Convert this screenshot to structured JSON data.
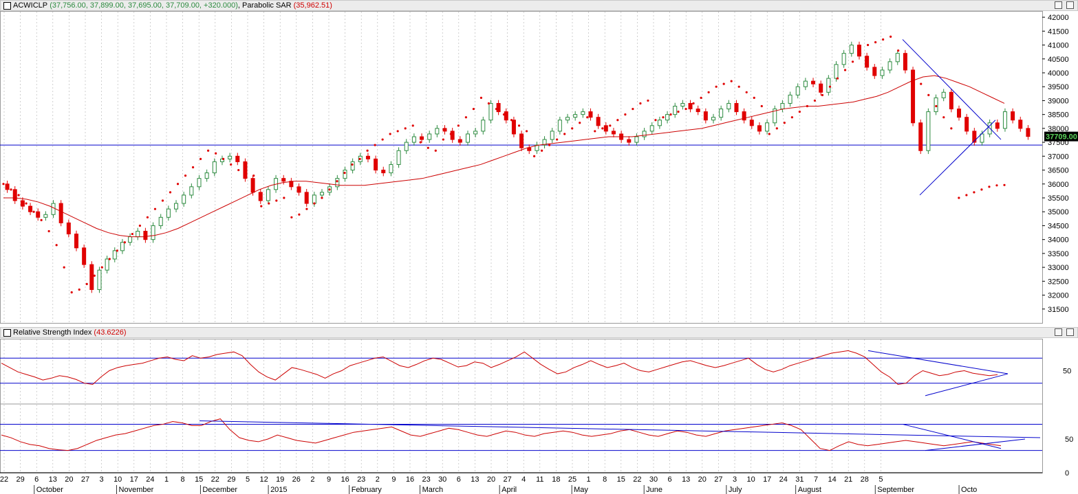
{
  "panels": {
    "price": {
      "symbol": "ACWICLP",
      "ohlc_text": "(37,756.00, 37,899.00, 37,695.00, 37,709.00, +320.000)",
      "indicator": "Parabolic SAR",
      "indicator_value": "(35,962.51)",
      "last_price_badge": "37709.00"
    },
    "rsi": {
      "title": "Relative Strength Index",
      "value": "(43.6226)"
    }
  },
  "colors": {
    "up_candle": "#2b8a3e",
    "down_candle": "#e00000",
    "moving_average": "#cc0000",
    "sar": "#e00000",
    "trendline": "#0000cc",
    "rsi_line": "#cc0000",
    "grid": "#b0b0b0"
  },
  "chart_data": [
    {
      "type": "candlestick",
      "ylim": [
        31000,
        42200
      ],
      "y_ticks": [
        "42000",
        "41500",
        "41000",
        "40500",
        "40000",
        "39500",
        "39000",
        "38500",
        "38000",
        "37500",
        "37000",
        "36500",
        "36000",
        "35500",
        "35000",
        "34500",
        "34000",
        "33500",
        "33000",
        "32500",
        "32000",
        "31500"
      ],
      "horizontal_line": 37400,
      "last_close": 37709,
      "close_series": [
        35800,
        35400,
        35200,
        35000,
        34800,
        34900,
        35300,
        34600,
        34200,
        33700,
        33100,
        32200,
        32900,
        33300,
        33600,
        33900,
        34100,
        34300,
        34000,
        34500,
        34800,
        35100,
        35300,
        35600,
        35900,
        36200,
        36400,
        36800,
        36900,
        37000,
        36800,
        36200,
        35700,
        35400,
        35800,
        36200,
        36100,
        35900,
        35700,
        35300,
        35600,
        35700,
        35900,
        36200,
        36500,
        36800,
        37000,
        36900,
        36500,
        36400,
        36700,
        37200,
        37500,
        37700,
        37600,
        37800,
        38000,
        37900,
        37600,
        37500,
        37800,
        37900,
        38300,
        38900,
        38600,
        38300,
        37800,
        37300,
        37200,
        37400,
        37600,
        37900,
        38300,
        38400,
        38500,
        38600,
        38400,
        38100,
        37900,
        37800,
        37600,
        37500,
        37700,
        37900,
        38100,
        38300,
        38500,
        38800,
        38900,
        38700,
        38600,
        38300,
        38400,
        38700,
        38900,
        38600,
        38300,
        38100,
        37900,
        38200,
        38700,
        38900,
        39200,
        39500,
        39700,
        39600,
        39300,
        39800,
        40300,
        40700,
        41000,
        40600,
        40200,
        39900,
        40100,
        40400,
        40700,
        40100,
        38200,
        37200,
        38600,
        39100,
        39300,
        38700,
        38400,
        37900,
        37500,
        37800,
        38200,
        38000,
        38600,
        38300,
        38000,
        37709
      ],
      "sar_series": [
        36000,
        35800,
        35600,
        35300,
        35000,
        34700,
        34300,
        33800,
        33000,
        32100,
        32200,
        32400,
        32700,
        33000,
        33300,
        33600,
        33900,
        34200,
        34500,
        34800,
        35100,
        35400,
        35700,
        36000,
        36300,
        36600,
        36900,
        37200,
        37100,
        36900,
        36700,
        36500,
        36400,
        36300,
        35200,
        35300,
        35400,
        35500,
        34800,
        34900,
        35100,
        35300,
        35500,
        35800,
        36100,
        36400,
        36700,
        36900,
        37200,
        37400,
        37600,
        37800,
        37900,
        38000,
        38100,
        37500,
        37300,
        37200,
        37600,
        37800,
        38100,
        38400,
        38700,
        39100,
        38900,
        38700,
        38500,
        38300,
        38100,
        37900,
        37000,
        37200,
        37400,
        37600,
        37800,
        38000,
        38200,
        38400,
        37900,
        38000,
        38100,
        38300,
        38500,
        38700,
        38900,
        39000,
        38300,
        38400,
        38500,
        38600,
        38700,
        38900,
        39100,
        39300,
        39500,
        39600,
        39700,
        39500,
        39300,
        39100,
        38800,
        37800,
        38000,
        38200,
        38400,
        38600,
        38800,
        39000,
        39200,
        39500,
        39800,
        40100,
        40400,
        40700,
        41000,
        41100,
        41200,
        41300,
        40800,
        40400,
        40000,
        39600,
        39200,
        38800,
        38400,
        38000,
        35500,
        35600,
        35700,
        35800,
        35900,
        35950,
        35962
      ],
      "ma_series": [
        35500,
        35500,
        35450,
        35350,
        35200,
        35000,
        34800,
        34600,
        34400,
        34250,
        34150,
        34100,
        34100,
        34150,
        34250,
        34400,
        34600,
        34800,
        35000,
        35200,
        35400,
        35600,
        35800,
        35950,
        36050,
        36100,
        36100,
        36050,
        36000,
        35950,
        35950,
        35950,
        36000,
        36050,
        36100,
        36150,
        36200,
        36300,
        36400,
        36500,
        36600,
        36700,
        36850,
        37000,
        37150,
        37300,
        37400,
        37450,
        37500,
        37550,
        37600,
        37650,
        37700,
        37700,
        37700,
        37750,
        37800,
        37850,
        37900,
        37950,
        38000,
        38100,
        38200,
        38300,
        38400,
        38500,
        38600,
        38700,
        38750,
        38800,
        38800,
        38850,
        38900,
        38950,
        39050,
        39150,
        39300,
        39500,
        39700,
        39850,
        39900,
        39800,
        39650,
        39500,
        39300,
        39100,
        38900
      ]
    },
    {
      "type": "line",
      "title": "Relative Strength Index",
      "ylim": [
        0,
        100
      ],
      "y_ticks": [
        "50"
      ],
      "reference_lines": [
        70,
        30
      ],
      "last_value": 43.6226,
      "values": [
        62,
        55,
        48,
        44,
        40,
        35,
        38,
        42,
        40,
        36,
        30,
        28,
        40,
        50,
        55,
        58,
        60,
        62,
        66,
        70,
        72,
        68,
        66,
        74,
        70,
        72,
        76,
        78,
        80,
        74,
        60,
        48,
        40,
        35,
        45,
        55,
        52,
        48,
        44,
        38,
        45,
        50,
        58,
        62,
        66,
        70,
        72,
        65,
        58,
        55,
        60,
        66,
        70,
        68,
        62,
        56,
        58,
        64,
        62,
        55,
        60,
        66,
        72,
        80,
        70,
        60,
        52,
        45,
        48,
        55,
        60,
        66,
        60,
        55,
        58,
        62,
        55,
        50,
        48,
        52,
        56,
        60,
        64,
        66,
        62,
        58,
        55,
        58,
        62,
        66,
        70,
        60,
        52,
        48,
        52,
        58,
        62,
        66,
        70,
        74,
        78,
        80,
        82,
        78,
        72,
        60,
        48,
        40,
        28,
        30,
        42,
        50,
        46,
        42,
        44,
        48,
        50,
        46,
        44,
        42,
        43.6
      ]
    },
    {
      "type": "line",
      "ylim": [
        0,
        100
      ],
      "y_ticks": [
        "50",
        "0"
      ],
      "reference_lines": [
        72,
        33
      ],
      "values": [
        56,
        52,
        46,
        42,
        40,
        36,
        34,
        33,
        36,
        42,
        48,
        52,
        56,
        58,
        62,
        66,
        70,
        72,
        76,
        74,
        70,
        70,
        76,
        80,
        64,
        52,
        48,
        46,
        50,
        56,
        52,
        48,
        46,
        44,
        48,
        52,
        56,
        60,
        62,
        64,
        66,
        68,
        62,
        56,
        54,
        58,
        62,
        66,
        64,
        60,
        56,
        54,
        58,
        62,
        60,
        56,
        54,
        58,
        60,
        62,
        60,
        56,
        54,
        56,
        58,
        62,
        64,
        60,
        56,
        54,
        58,
        62,
        60,
        56,
        54,
        58,
        62,
        64,
        66,
        68,
        70,
        72,
        74,
        70,
        64,
        50,
        36,
        33,
        40,
        46,
        42,
        40,
        42,
        44,
        46,
        48,
        46,
        44,
        42,
        40,
        42,
        44,
        46,
        44,
        42,
        40
      ]
    }
  ],
  "x_axis": {
    "day_labels": [
      "22",
      "29",
      "6",
      "13",
      "20",
      "27",
      "3",
      "10",
      "17",
      "24",
      "1",
      "8",
      "15",
      "22",
      "29",
      "5",
      "12",
      "19",
      "26",
      "2",
      "9",
      "16",
      "23",
      "2",
      "9",
      "16",
      "23",
      "30",
      "6",
      "13",
      "20",
      "27",
      "4",
      "11",
      "18",
      "25",
      "1",
      "8",
      "15",
      "22",
      "30",
      "6",
      "13",
      "20",
      "27",
      "3",
      "10",
      "17",
      "24",
      "31",
      "7",
      "14",
      "21",
      "28",
      "5"
    ],
    "month_labels": [
      "October",
      "November",
      "December",
      "2015",
      "February",
      "March",
      "April",
      "May",
      "June",
      "July",
      "August",
      "September",
      "Octo"
    ]
  }
}
